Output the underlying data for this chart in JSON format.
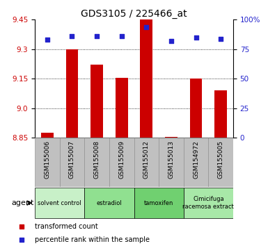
{
  "title": "GDS3105 / 225466_at",
  "samples": [
    "GSM155006",
    "GSM155007",
    "GSM155008",
    "GSM155009",
    "GSM155012",
    "GSM155013",
    "GSM154972",
    "GSM155005"
  ],
  "red_values": [
    8.875,
    9.3,
    9.22,
    9.155,
    9.47,
    8.855,
    9.15,
    9.09
  ],
  "blue_values": [
    83,
    86,
    86,
    86,
    94,
    82,
    85,
    84
  ],
  "ymin": 8.85,
  "ymax": 9.45,
  "y_ticks_left": [
    8.85,
    9.0,
    9.15,
    9.3,
    9.45
  ],
  "y_ticks_right": [
    0,
    25,
    50,
    75,
    100
  ],
  "y_right_labels": [
    "0",
    "25",
    "50",
    "75",
    "100%"
  ],
  "grid_lines": [
    9.0,
    9.15,
    9.3
  ],
  "agent_groups": [
    {
      "label": "solvent control",
      "span": [
        0,
        2
      ],
      "color": "#c8f0c8"
    },
    {
      "label": "estradiol",
      "span": [
        2,
        4
      ],
      "color": "#90e090"
    },
    {
      "label": "tamoxifen",
      "span": [
        4,
        6
      ],
      "color": "#70d070"
    },
    {
      "label": "Cimicifuga\nracemosa extract",
      "span": [
        6,
        8
      ],
      "color": "#a8e8a8"
    }
  ],
  "bar_color": "#cc0000",
  "dot_color": "#2222cc",
  "bg_color": "#c0c0c0",
  "plot_bg": "#ffffff",
  "legend_red": "transformed count",
  "legend_blue": "percentile rank within the sample",
  "left_tick_color": "#cc0000",
  "right_tick_color": "#2222cc",
  "bar_width": 0.5,
  "dot_size": 18
}
